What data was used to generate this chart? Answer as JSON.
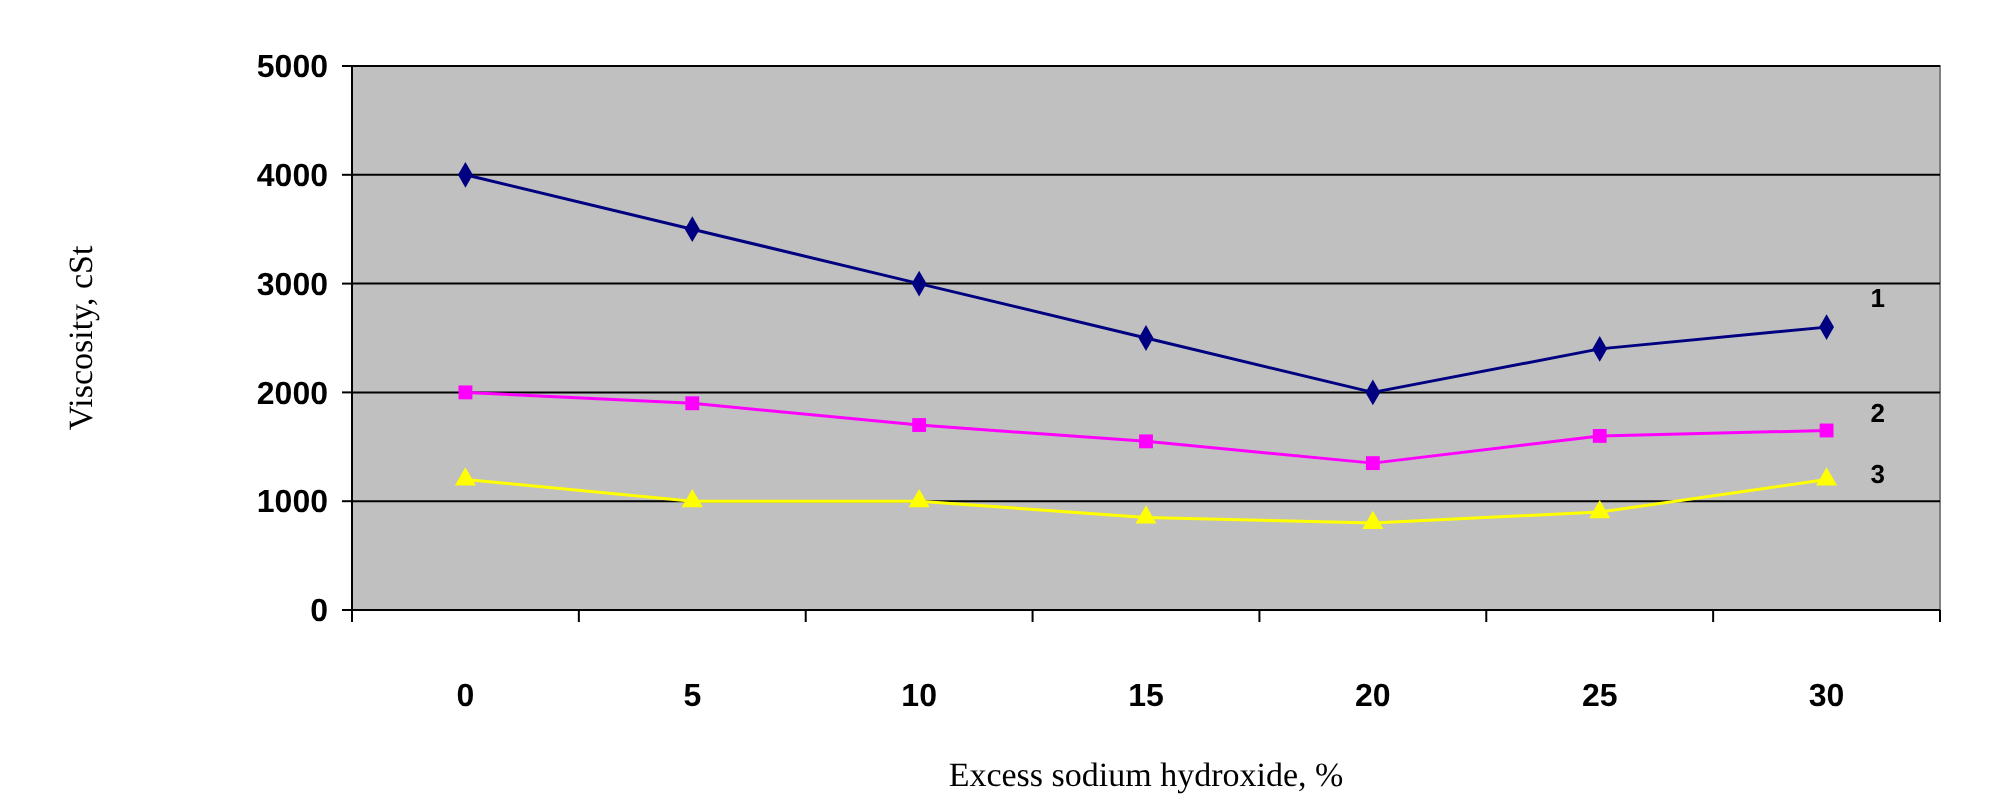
{
  "chart_data": {
    "type": "line",
    "xlabel": "Excess sodium hydroxide, %",
    "ylabel": "Viscosity, cSt",
    "categories": [
      "0",
      "5",
      "10",
      "15",
      "20",
      "25",
      "30"
    ],
    "ylim": [
      0,
      5000
    ],
    "yticks": [
      0,
      1000,
      2000,
      3000,
      4000,
      5000
    ],
    "grid": "y",
    "series": [
      {
        "name": "1",
        "color": "#000080",
        "marker": "diamond",
        "values": [
          4000,
          3500,
          3000,
          2500,
          2000,
          2400,
          2600
        ]
      },
      {
        "name": "2",
        "color": "#ff00ff",
        "marker": "square",
        "values": [
          2000,
          1900,
          1700,
          1550,
          1350,
          1600,
          1650
        ]
      },
      {
        "name": "3",
        "color": "#ffff00",
        "marker": "triangle",
        "values": [
          1200,
          1000,
          1000,
          850,
          800,
          900,
          1200
        ]
      }
    ]
  }
}
